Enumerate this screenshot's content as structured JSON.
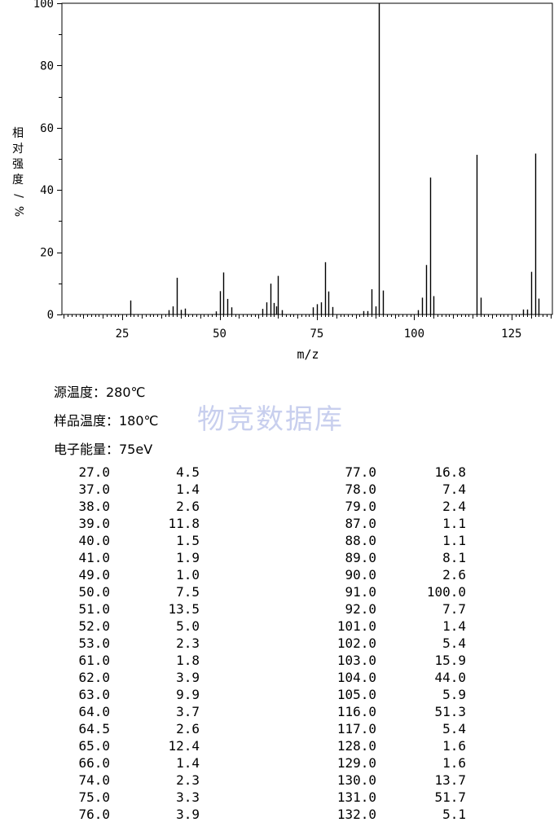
{
  "chart_data": {
    "type": "bar",
    "xlabel": "m/z",
    "ylabel": "相对强度/%",
    "xlim": [
      9.5,
      135.5
    ],
    "ylim": [
      0,
      100
    ],
    "x_ticks": [
      25,
      50,
      75,
      100,
      125
    ],
    "y_ticks": [
      0,
      20,
      40,
      60,
      80,
      100
    ],
    "x": [
      27.0,
      37.0,
      38.0,
      39.0,
      40.0,
      41.0,
      49.0,
      50.0,
      51.0,
      52.0,
      53.0,
      61.0,
      62.0,
      63.0,
      64.0,
      64.5,
      65.0,
      66.0,
      74.0,
      75.0,
      76.0,
      77.0,
      78.0,
      79.0,
      87.0,
      88.0,
      89.0,
      90.0,
      91.0,
      92.0,
      101.0,
      102.0,
      103.0,
      104.0,
      105.0,
      116.0,
      117.0,
      128.0,
      129.0,
      130.0,
      131.0,
      132.0
    ],
    "values": [
      4.5,
      1.4,
      2.6,
      11.8,
      1.5,
      1.9,
      1.0,
      7.5,
      13.5,
      5.0,
      2.3,
      1.8,
      3.9,
      9.9,
      3.7,
      2.6,
      12.4,
      1.4,
      2.3,
      3.3,
      3.9,
      16.8,
      7.4,
      2.4,
      1.1,
      1.1,
      8.1,
      2.6,
      100.0,
      7.7,
      1.4,
      5.4,
      15.9,
      44.0,
      5.9,
      51.3,
      5.4,
      1.6,
      1.6,
      13.7,
      51.7,
      5.1
    ]
  },
  "info": {
    "source_temp": "源温度：280℃",
    "sample_temp": "样品温度：180℃",
    "electron_energy": "电子能量：75eV"
  },
  "watermark": "物竞数据库",
  "peak_table": {
    "left": [
      [
        "27.0",
        "4.5"
      ],
      [
        "37.0",
        "1.4"
      ],
      [
        "38.0",
        "2.6"
      ],
      [
        "39.0",
        "11.8"
      ],
      [
        "40.0",
        "1.5"
      ],
      [
        "41.0",
        "1.9"
      ],
      [
        "49.0",
        "1.0"
      ],
      [
        "50.0",
        "7.5"
      ],
      [
        "51.0",
        "13.5"
      ],
      [
        "52.0",
        "5.0"
      ],
      [
        "53.0",
        "2.3"
      ],
      [
        "61.0",
        "1.8"
      ],
      [
        "62.0",
        "3.9"
      ],
      [
        "63.0",
        "9.9"
      ],
      [
        "64.0",
        "3.7"
      ],
      [
        "64.5",
        "2.6"
      ],
      [
        "65.0",
        "12.4"
      ],
      [
        "66.0",
        "1.4"
      ],
      [
        "74.0",
        "2.3"
      ],
      [
        "75.0",
        "3.3"
      ],
      [
        "76.0",
        "3.9"
      ]
    ],
    "right": [
      [
        "77.0",
        "16.8"
      ],
      [
        "78.0",
        "7.4"
      ],
      [
        "79.0",
        "2.4"
      ],
      [
        "87.0",
        "1.1"
      ],
      [
        "88.0",
        "1.1"
      ],
      [
        "89.0",
        "8.1"
      ],
      [
        "90.0",
        "2.6"
      ],
      [
        "91.0",
        "100.0"
      ],
      [
        "92.0",
        "7.7"
      ],
      [
        "101.0",
        "1.4"
      ],
      [
        "102.0",
        "5.4"
      ],
      [
        "103.0",
        "15.9"
      ],
      [
        "104.0",
        "44.0"
      ],
      [
        "105.0",
        "5.9"
      ],
      [
        "116.0",
        "51.3"
      ],
      [
        "117.0",
        "5.4"
      ],
      [
        "128.0",
        "1.6"
      ],
      [
        "129.0",
        "1.6"
      ],
      [
        "130.0",
        "13.7"
      ],
      [
        "131.0",
        "51.7"
      ],
      [
        "132.0",
        "5.1"
      ]
    ]
  }
}
